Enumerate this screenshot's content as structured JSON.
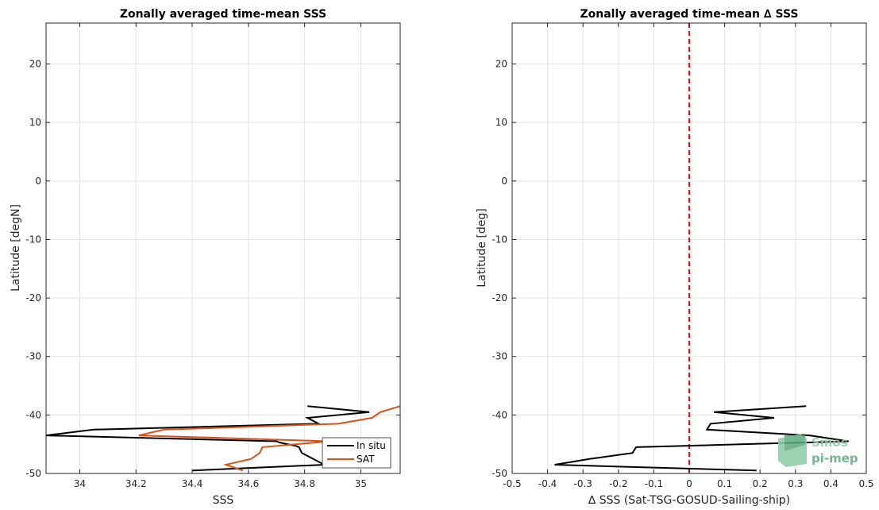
{
  "chart_data": [
    {
      "type": "line",
      "title": "Zonally averaged time-mean SSS",
      "xlabel": "SSS",
      "ylabel": "Latitude [degN]",
      "xlim": [
        33.88,
        35.14
      ],
      "ylim": [
        -50,
        27
      ],
      "xticks": [
        34,
        34.2,
        34.4,
        34.6,
        34.8,
        35
      ],
      "xtick_labels": [
        "34",
        "34.2",
        "34.4",
        "34.6",
        "34.8",
        "35"
      ],
      "yticks": [
        -50,
        -40,
        -30,
        -20,
        -10,
        0,
        10,
        20
      ],
      "ytick_labels": [
        "-50",
        "-40",
        "-30",
        "-20",
        "-10",
        "0",
        "10",
        "20"
      ],
      "grid": true,
      "legend_position": "bottom-right",
      "series": [
        {
          "name": "In situ",
          "color": "#000000",
          "x": [
            34.81,
            35.03,
            34.81,
            34.85,
            34.05,
            33.88,
            34.7,
            34.71,
            34.77,
            34.78,
            34.79,
            34.87,
            34.4
          ],
          "y": [
            -38.5,
            -39.5,
            -40.5,
            -41.5,
            -42.5,
            -43.5,
            -44.5,
            -44.7,
            -45.3,
            -45.5,
            -46.5,
            -48.5,
            -49.5
          ]
        },
        {
          "name": "SAT",
          "color": "#d95319",
          "x": [
            35.14,
            35.07,
            35.04,
            34.92,
            34.3,
            34.21,
            34.89,
            34.65,
            34.64,
            34.61,
            34.52,
            34.58
          ],
          "y": [
            -38.5,
            -39.5,
            -40.5,
            -41.5,
            -42.5,
            -43.5,
            -44.5,
            -45.5,
            -46.5,
            -47.5,
            -48.5,
            -49.5
          ]
        }
      ]
    },
    {
      "type": "line",
      "title": "Zonally averaged time-mean ∆ SSS",
      "xlabel": "∆ SSS (Sat-TSG-GOSUD-Sailing-ship)",
      "ylabel": "Latitude [deg]",
      "xlim": [
        -0.5,
        0.5
      ],
      "ylim": [
        -50,
        27
      ],
      "xticks": [
        -0.5,
        -0.4,
        -0.3,
        -0.2,
        -0.1,
        0,
        0.1,
        0.2,
        0.3,
        0.4,
        0.5
      ],
      "xtick_labels": [
        "-0.5",
        "-0.4",
        "-0.3",
        "-0.2",
        "-0.1",
        "0",
        "0.1",
        "0.2",
        "0.3",
        "0.4",
        "0.5"
      ],
      "yticks": [
        -50,
        -40,
        -30,
        -20,
        -10,
        0,
        10,
        20
      ],
      "ytick_labels": [
        "-50",
        "-40",
        "-30",
        "-20",
        "-10",
        "0",
        "10",
        "20"
      ],
      "grid": true,
      "reference_line": {
        "x": 0,
        "color": "#e8151d",
        "style": "dashed"
      },
      "series": [
        {
          "color": "#000000",
          "x": [
            0.33,
            0.07,
            0.24,
            0.06,
            0.05,
            0.34,
            0.45,
            -0.15,
            -0.16,
            -0.28,
            -0.38,
            0.19
          ],
          "y": [
            -38.5,
            -39.5,
            -40.5,
            -41.5,
            -42.5,
            -43.5,
            -44.5,
            -45.5,
            -46.5,
            -47.5,
            -48.5,
            -49.5
          ]
        }
      ]
    }
  ],
  "watermark": {
    "text_top": "Smos",
    "text_bottom": "pi-mep",
    "color": "#5dab7e"
  }
}
